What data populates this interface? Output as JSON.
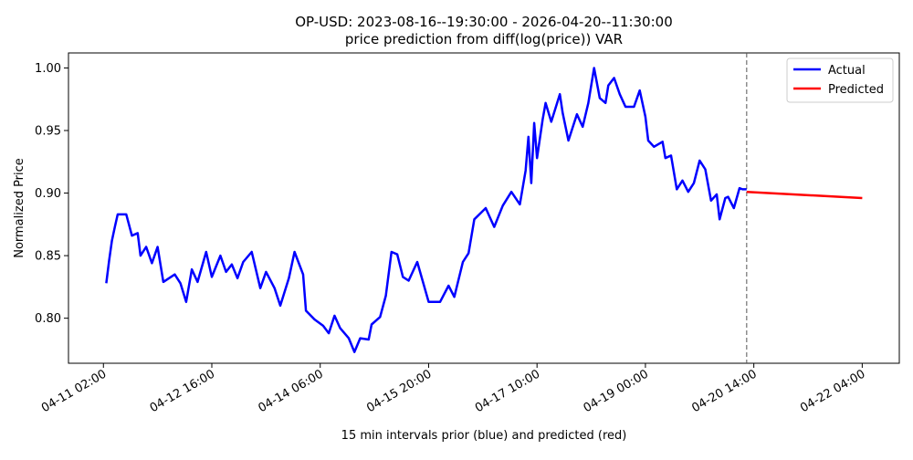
{
  "chart_data": {
    "type": "line",
    "title": "OP-USD: 2023-08-16--19:30:00 - 2026-04-20--11:30:00",
    "subtitle": "price prediction from diff(log(price)) VAR",
    "xlabel": "15 min intervals prior (blue) and predicted (red)",
    "ylabel": "Normalized Price",
    "ylim": [
      0.764,
      1.012
    ],
    "xlim": [
      "04-10 13:45",
      "04-22 17:00"
    ],
    "grid": false,
    "legend_position": "top-right",
    "x_ticks": [
      "04-11 02:00",
      "04-12 16:00",
      "04-14 06:00",
      "04-15 20:00",
      "04-17 10:00",
      "04-19 00:00",
      "04-20 14:00",
      "04-22 04:00"
    ],
    "y_ticks": [
      "0.80",
      "0.85",
      "0.90",
      "0.95",
      "1.00"
    ],
    "divider_at": "04-20 11:30",
    "series": [
      {
        "name": "Actual",
        "color": "#0000ff",
        "points": [
          [
            "04-11 03:00",
            0.828
          ],
          [
            "04-11 04:00",
            0.846
          ],
          [
            "04-11 05:00",
            0.862
          ],
          [
            "04-11 06:00",
            0.873
          ],
          [
            "04-11 07:00",
            0.883
          ],
          [
            "04-11 10:00",
            0.883
          ],
          [
            "04-11 12:00",
            0.866
          ],
          [
            "04-11 14:00",
            0.868
          ],
          [
            "04-11 15:00",
            0.85
          ],
          [
            "04-11 17:00",
            0.857
          ],
          [
            "04-11 19:00",
            0.844
          ],
          [
            "04-11 21:00",
            0.857
          ],
          [
            "04-11 23:00",
            0.829
          ],
          [
            "04-12 03:00",
            0.835
          ],
          [
            "04-12 05:00",
            0.828
          ],
          [
            "04-12 07:00",
            0.813
          ],
          [
            "04-12 09:00",
            0.839
          ],
          [
            "04-12 11:00",
            0.829
          ],
          [
            "04-12 14:00",
            0.853
          ],
          [
            "04-12 16:00",
            0.833
          ],
          [
            "04-12 19:00",
            0.85
          ],
          [
            "04-12 21:00",
            0.837
          ],
          [
            "04-12 23:00",
            0.843
          ],
          [
            "04-13 01:00",
            0.832
          ],
          [
            "04-13 03:00",
            0.845
          ],
          [
            "04-13 06:00",
            0.853
          ],
          [
            "04-13 09:00",
            0.824
          ],
          [
            "04-13 11:00",
            0.837
          ],
          [
            "04-13 14:00",
            0.824
          ],
          [
            "04-13 16:00",
            0.81
          ],
          [
            "04-13 19:00",
            0.832
          ],
          [
            "04-13 21:00",
            0.853
          ],
          [
            "04-14 00:00",
            0.835
          ],
          [
            "04-14 01:00",
            0.806
          ],
          [
            "04-14 04:00",
            0.799
          ],
          [
            "04-14 07:00",
            0.794
          ],
          [
            "04-14 09:00",
            0.788
          ],
          [
            "04-14 11:00",
            0.802
          ],
          [
            "04-14 13:00",
            0.792
          ],
          [
            "04-14 16:00",
            0.784
          ],
          [
            "04-14 18:00",
            0.773
          ],
          [
            "04-14 20:00",
            0.784
          ],
          [
            "04-14 23:00",
            0.783
          ],
          [
            "04-15 00:00",
            0.795
          ],
          [
            "04-15 03:00",
            0.801
          ],
          [
            "04-15 05:00",
            0.818
          ],
          [
            "04-15 07:00",
            0.853
          ],
          [
            "04-15 09:00",
            0.851
          ],
          [
            "04-15 11:00",
            0.833
          ],
          [
            "04-15 13:00",
            0.83
          ],
          [
            "04-15 16:00",
            0.845
          ],
          [
            "04-15 20:00",
            0.813
          ],
          [
            "04-16 00:00",
            0.813
          ],
          [
            "04-16 03:00",
            0.826
          ],
          [
            "04-16 05:00",
            0.817
          ],
          [
            "04-16 08:00",
            0.845
          ],
          [
            "04-16 10:00",
            0.852
          ],
          [
            "04-16 12:00",
            0.879
          ],
          [
            "04-16 16:00",
            0.888
          ],
          [
            "04-16 19:00",
            0.873
          ],
          [
            "04-16 22:00",
            0.89
          ],
          [
            "04-17 01:00",
            0.901
          ],
          [
            "04-17 04:00",
            0.891
          ],
          [
            "04-17 06:00",
            0.918
          ],
          [
            "04-17 07:00",
            0.945
          ],
          [
            "04-17 08:00",
            0.908
          ],
          [
            "04-17 09:00",
            0.956
          ],
          [
            "04-17 10:00",
            0.928
          ],
          [
            "04-17 12:00",
            0.959
          ],
          [
            "04-17 13:00",
            0.972
          ],
          [
            "04-17 15:00",
            0.957
          ],
          [
            "04-17 18:00",
            0.979
          ],
          [
            "04-17 19:00",
            0.964
          ],
          [
            "04-17 21:00",
            0.942
          ],
          [
            "04-18 00:00",
            0.963
          ],
          [
            "04-18 02:00",
            0.953
          ],
          [
            "04-18 04:00",
            0.972
          ],
          [
            "04-18 06:00",
            1.0
          ],
          [
            "04-18 08:00",
            0.976
          ],
          [
            "04-18 10:00",
            0.972
          ],
          [
            "04-18 11:00",
            0.986
          ],
          [
            "04-18 13:00",
            0.992
          ],
          [
            "04-18 15:00",
            0.979
          ],
          [
            "04-18 17:00",
            0.969
          ],
          [
            "04-18 20:00",
            0.969
          ],
          [
            "04-18 22:00",
            0.982
          ],
          [
            "04-19 00:00",
            0.961
          ],
          [
            "04-19 01:00",
            0.942
          ],
          [
            "04-19 03:00",
            0.937
          ],
          [
            "04-19 06:00",
            0.941
          ],
          [
            "04-19 07:00",
            0.928
          ],
          [
            "04-19 09:00",
            0.93
          ],
          [
            "04-19 11:00",
            0.903
          ],
          [
            "04-19 13:00",
            0.91
          ],
          [
            "04-19 15:00",
            0.901
          ],
          [
            "04-19 17:00",
            0.908
          ],
          [
            "04-19 19:00",
            0.926
          ],
          [
            "04-19 21:00",
            0.919
          ],
          [
            "04-19 23:00",
            0.894
          ],
          [
            "04-20 01:00",
            0.899
          ],
          [
            "04-20 02:00",
            0.879
          ],
          [
            "04-20 04:00",
            0.896
          ],
          [
            "04-20 05:00",
            0.897
          ],
          [
            "04-20 07:00",
            0.888
          ],
          [
            "04-20 09:00",
            0.904
          ],
          [
            "04-20 10:00",
            0.903
          ],
          [
            "04-20 11:30",
            0.903
          ]
        ]
      },
      {
        "name": "Predicted",
        "color": "#ff0000",
        "points": [
          [
            "04-20 11:30",
            0.901
          ],
          [
            "04-22 04:00",
            0.896
          ]
        ]
      }
    ]
  }
}
